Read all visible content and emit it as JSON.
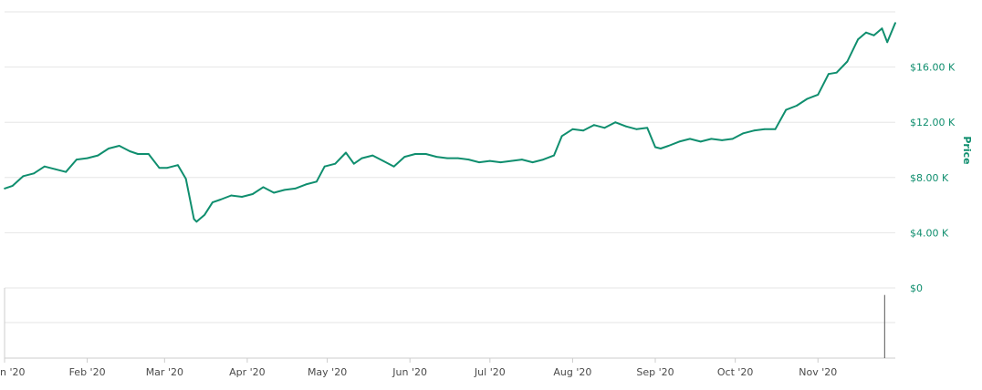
{
  "chart_data": {
    "type": "line",
    "ylabel": "Price",
    "ylim": [
      0,
      20000
    ],
    "grid": true,
    "colors": {
      "line": "#0f8e6e",
      "grid": "#e6e6e6",
      "y_ticks": "#0f8e6e",
      "x_ticks": "#4a4a4a",
      "volume_bar": "#555555"
    },
    "y_ticks": [
      {
        "value": 16000,
        "label": "$16.00 K"
      },
      {
        "value": 12000,
        "label": "$12.00 K"
      },
      {
        "value": 8000,
        "label": "$8.00 K"
      },
      {
        "value": 4000,
        "label": "$4.00 K"
      },
      {
        "value": 0,
        "label": "$0"
      }
    ],
    "x_ticks": [
      {
        "date": "2020-01-01",
        "label": "n '20"
      },
      {
        "date": "2020-02-01",
        "label": "Feb '20"
      },
      {
        "date": "2020-03-01",
        "label": "Mar '20"
      },
      {
        "date": "2020-04-01",
        "label": "Apr '20"
      },
      {
        "date": "2020-05-01",
        "label": "May '20"
      },
      {
        "date": "2020-06-01",
        "label": "Jun '20"
      },
      {
        "date": "2020-07-01",
        "label": "Jul '20"
      },
      {
        "date": "2020-08-01",
        "label": "Aug '20"
      },
      {
        "date": "2020-09-01",
        "label": "Sep '20"
      },
      {
        "date": "2020-10-01",
        "label": "Oct '20"
      },
      {
        "date": "2020-11-01",
        "label": "Nov '20"
      }
    ],
    "series": [
      {
        "x": [
          "2020-01-01",
          "2020-01-04",
          "2020-01-08",
          "2020-01-12",
          "2020-01-16",
          "2020-01-20",
          "2020-01-24",
          "2020-01-28",
          "2020-02-01",
          "2020-02-05",
          "2020-02-09",
          "2020-02-13",
          "2020-02-17",
          "2020-02-20",
          "2020-02-24",
          "2020-02-28",
          "2020-03-02",
          "2020-03-06",
          "2020-03-09",
          "2020-03-12",
          "2020-03-13",
          "2020-03-16",
          "2020-03-19",
          "2020-03-22",
          "2020-03-26",
          "2020-03-30",
          "2020-04-03",
          "2020-04-07",
          "2020-04-11",
          "2020-04-15",
          "2020-04-19",
          "2020-04-23",
          "2020-04-27",
          "2020-04-30",
          "2020-05-04",
          "2020-05-08",
          "2020-05-11",
          "2020-05-14",
          "2020-05-18",
          "2020-05-22",
          "2020-05-26",
          "2020-05-30",
          "2020-06-03",
          "2020-06-07",
          "2020-06-11",
          "2020-06-15",
          "2020-06-19",
          "2020-06-23",
          "2020-06-27",
          "2020-07-01",
          "2020-07-05",
          "2020-07-09",
          "2020-07-13",
          "2020-07-17",
          "2020-07-21",
          "2020-07-25",
          "2020-07-28",
          "2020-08-01",
          "2020-08-05",
          "2020-08-09",
          "2020-08-13",
          "2020-08-17",
          "2020-08-21",
          "2020-08-25",
          "2020-08-29",
          "2020-09-01",
          "2020-09-03",
          "2020-09-06",
          "2020-09-10",
          "2020-09-14",
          "2020-09-18",
          "2020-09-22",
          "2020-09-26",
          "2020-09-30",
          "2020-10-04",
          "2020-10-08",
          "2020-10-12",
          "2020-10-16",
          "2020-10-20",
          "2020-10-24",
          "2020-10-28",
          "2020-11-01",
          "2020-11-05",
          "2020-11-08",
          "2020-11-12",
          "2020-11-16",
          "2020-11-19",
          "2020-11-22",
          "2020-11-25",
          "2020-11-27",
          "2020-11-30"
        ],
        "y": [
          7200,
          7400,
          8100,
          8300,
          8800,
          8600,
          8400,
          9300,
          9400,
          9600,
          10100,
          10300,
          9900,
          9700,
          9700,
          8700,
          8700,
          8900,
          7900,
          5000,
          4800,
          5300,
          6200,
          6400,
          6700,
          6600,
          6800,
          7300,
          6900,
          7100,
          7200,
          7500,
          7700,
          8800,
          9000,
          9800,
          9000,
          9400,
          9600,
          9200,
          8800,
          9500,
          9700,
          9700,
          9500,
          9400,
          9400,
          9300,
          9100,
          9200,
          9100,
          9200,
          9300,
          9100,
          9300,
          9600,
          11000,
          11500,
          11400,
          11800,
          11600,
          12000,
          11700,
          11500,
          11600,
          10200,
          10100,
          10300,
          10600,
          10800,
          10600,
          10800,
          10700,
          10800,
          11200,
          11400,
          11500,
          11500,
          12900,
          13200,
          13700,
          14000,
          15500,
          15600,
          16400,
          18000,
          18500,
          18300,
          18800,
          17800,
          19200
        ]
      }
    ],
    "volume_panel": {
      "bars": [
        {
          "date": "2020-11-26",
          "height_ratio": 0.9
        }
      ]
    }
  }
}
